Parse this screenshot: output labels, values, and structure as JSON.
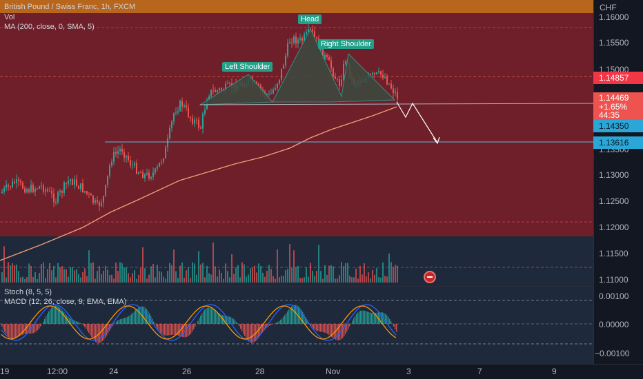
{
  "header": {
    "symbol_title": "British Pound / Swiss Franc, 1h, FXCM",
    "currency": "CHF"
  },
  "indicators": {
    "volume_label": "Vol",
    "ma_label": "MA (200, close, 0, SMA, 5)",
    "stoch_label": "Stoch (8, 5, 5)",
    "macd_label": "MACD (12, 26, close, 9, EMA, EMA)"
  },
  "pattern_labels": {
    "left_shoulder": "Left Shoulder",
    "head": "Head",
    "right_shoulder": "Right Shoulder"
  },
  "price_scale": {
    "ticks": [
      "1.16000",
      "1.15500",
      "1.15000",
      "1.14500",
      "1.14000",
      "1.13500",
      "1.13000",
      "1.12500",
      "1.12000",
      "1.11500",
      "1.11000"
    ]
  },
  "price_tags": {
    "alert_level": "1.14857",
    "last_price": "1.14469",
    "change_pct": "+1.65%",
    "countdown": "44:35",
    "neckline": "1.14350",
    "target": "1.13616"
  },
  "osc_scale": {
    "ticks": [
      "0.00100",
      "0.00000",
      "−0.00100"
    ]
  },
  "time_axis": {
    "ticks": [
      "19",
      "12:00",
      "24",
      "26",
      "28",
      "Nov",
      "3",
      "7",
      "9"
    ]
  },
  "colors": {
    "bull": "#26a69a",
    "bear": "#ef5350",
    "red_zone": "#6e1f2a",
    "ma_line": "#f3a07a",
    "stoch_k": "#2962ff",
    "stoch_d": "#ff9800",
    "pattern_fill": "#3b4a3f"
  }
}
